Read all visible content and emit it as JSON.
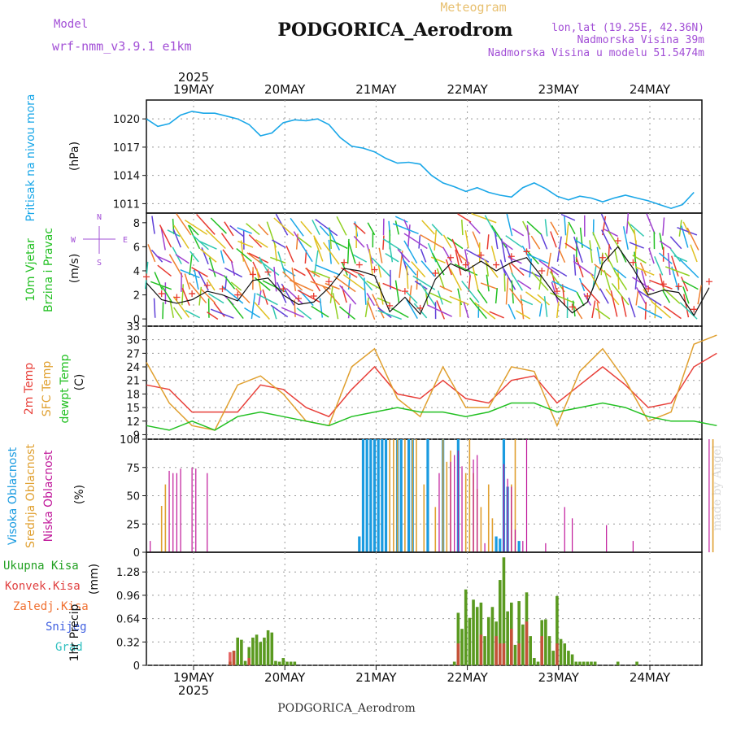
{
  "header": {
    "model_label": "Model",
    "model_name": "wrf-nmm_v3.9.1 e1km",
    "chart_kind": "Meteogram",
    "station": "PODGORICA_Aerodrom",
    "lonlat": "lon,lat (19.25E, 42.36N)",
    "elevation": "Nadmorska Visina 39m",
    "model_elevation": "Nadmorska Visina u modelu 51.5474m",
    "footer_station": "PODGORICA_Aerodrom",
    "credit": "made by Angel",
    "year": "2025"
  },
  "days": [
    "19MAY",
    "20MAY",
    "21MAY",
    "22MAY",
    "23MAY",
    "24MAY"
  ],
  "compass": {
    "n": "N",
    "w": "W",
    "e": "E",
    "s": "S"
  },
  "colors": {
    "pressure": "#1aa7e8",
    "wind_label": "#22c022",
    "wind_compass": "#a24fd6",
    "temp2m": "#e8403a",
    "sfc_temp": "#e0a030",
    "dewpt": "#22c022",
    "high_cloud": "#1a9be0",
    "mid_cloud": "#e0a030",
    "low_cloud": "#c0189a",
    "precip_total": "#5a9a20",
    "precip_conv": "#e04040",
    "snow": "#4060e0",
    "hail": "#30c0c0"
  },
  "chart_data": [
    {
      "type": "line",
      "panel": "pressure",
      "ylabel": "Pritisak na nivou mora",
      "unit": "(hPa)",
      "yticks": [
        1011,
        1014,
        1017,
        1020
      ],
      "ylim": [
        1010,
        1022
      ],
      "series": [
        {
          "x": [
            0,
            3,
            6,
            9,
            12,
            15,
            18,
            21,
            24,
            27,
            30,
            33,
            36,
            39,
            42,
            45,
            48,
            51,
            54,
            57,
            60,
            63,
            66,
            69,
            72,
            75,
            78,
            81,
            84,
            87,
            90,
            93,
            96,
            99,
            102,
            105,
            108,
            111,
            114,
            117,
            120,
            123,
            126,
            129,
            132,
            135,
            138,
            141,
            144
          ],
          "y": [
            1020.0,
            1019.2,
            1019.5,
            1020.4,
            1020.8,
            1020.6,
            1020.6,
            1020.3,
            1020.0,
            1019.4,
            1018.2,
            1018.5,
            1019.6,
            1019.9,
            1019.8,
            1020.0,
            1019.4,
            1018.0,
            1017.1,
            1016.9,
            1016.5,
            1015.8,
            1015.3,
            1015.4,
            1015.2,
            1014.0,
            1013.2,
            1012.8,
            1012.3,
            1012.7,
            1012.2,
            1011.9,
            1011.7,
            1012.7,
            1013.2,
            1012.6,
            1011.8,
            1011.4,
            1011.8,
            1011.6,
            1011.2,
            1011.6,
            1011.9,
            1011.6,
            1011.3,
            1010.9,
            1010.5,
            1010.9,
            1012.2
          ]
        }
      ]
    },
    {
      "type": "line",
      "panel": "wind",
      "ylabel_lines": [
        "10m Vjetar",
        "Brzina i Pravac"
      ],
      "unit": "(m/s)",
      "yticks": [
        0,
        2,
        4,
        6,
        8
      ],
      "ylim": [
        -0.6,
        8.8
      ],
      "series": [
        {
          "x": [
            0,
            4,
            8,
            12,
            16,
            20,
            24,
            28,
            32,
            36,
            40,
            44,
            48,
            52,
            56,
            60,
            64,
            68,
            72,
            76,
            80,
            84,
            88,
            92,
            96,
            100,
            104,
            108,
            112,
            116,
            120,
            124,
            128,
            132,
            136,
            140,
            144,
            148
          ],
          "y": [
            3.0,
            1.6,
            1.3,
            1.6,
            2.3,
            2.0,
            1.5,
            3.2,
            3.4,
            2.0,
            1.2,
            1.4,
            2.6,
            4.2,
            4.0,
            3.6,
            0.6,
            1.8,
            0.4,
            3.3,
            4.6,
            4.0,
            4.8,
            4.0,
            4.7,
            5.1,
            3.5,
            1.8,
            0.5,
            1.4,
            4.6,
            6.0,
            4.2,
            2.0,
            2.4,
            2.2,
            0.3,
            2.6
          ]
        }
      ]
    },
    {
      "type": "line",
      "panel": "temperature",
      "ylabel_lines": [
        "2m Temp",
        "SFC Temp",
        "dewpt Temp"
      ],
      "unit": "(C)",
      "yticks": [
        9,
        12,
        15,
        18,
        21,
        24,
        27,
        30,
        33
      ],
      "ylim": [
        8,
        33
      ],
      "series": [
        {
          "name": "2m Temp",
          "x": [
            0,
            6,
            12,
            18,
            24,
            30,
            36,
            42,
            48,
            54,
            60,
            66,
            72,
            78,
            84,
            90,
            96,
            102,
            108,
            114,
            120,
            126,
            132,
            138,
            144,
            150
          ],
          "y": [
            20,
            19,
            14,
            14,
            14,
            20,
            19,
            15,
            13,
            19,
            24,
            18,
            17,
            21,
            17,
            16,
            21,
            22,
            16,
            20,
            24,
            20,
            15,
            16,
            24,
            27
          ]
        },
        {
          "name": "SFC Temp",
          "x": [
            0,
            6,
            12,
            18,
            24,
            30,
            36,
            42,
            48,
            54,
            60,
            66,
            72,
            78,
            84,
            90,
            96,
            102,
            108,
            114,
            120,
            126,
            132,
            138,
            144,
            150
          ],
          "y": [
            25,
            16,
            11,
            10,
            20,
            22,
            18,
            12,
            11,
            24,
            28,
            17,
            13,
            24,
            15,
            15,
            24,
            23,
            11,
            23,
            28,
            21,
            12,
            14,
            29,
            31
          ]
        },
        {
          "name": "dewpt Temp",
          "x": [
            0,
            6,
            12,
            18,
            24,
            30,
            36,
            42,
            48,
            54,
            60,
            66,
            72,
            78,
            84,
            90,
            96,
            102,
            108,
            114,
            120,
            126,
            132,
            138,
            144,
            150
          ],
          "y": [
            11,
            10,
            12,
            10,
            13,
            14,
            13,
            12,
            11,
            13,
            14,
            15,
            14,
            14,
            13,
            14,
            16,
            16,
            14,
            15,
            16,
            15,
            13,
            12,
            12,
            11
          ]
        }
      ]
    },
    {
      "type": "bar",
      "panel": "clouds",
      "ylabel_lines": [
        "Visoka Oblacnost",
        "Srednja Oblacnost",
        "Niska Oblacnost"
      ],
      "unit": "(%)",
      "yticks": [
        0,
        25,
        50,
        75,
        100
      ],
      "ylim": [
        0,
        100
      ],
      "series": [
        {
          "name": "Visoka Oblacnost",
          "x": [
            56,
            57,
            58,
            59,
            60,
            61,
            62,
            63,
            66,
            67,
            69,
            70,
            74,
            78,
            82,
            92,
            93,
            94,
            95,
            98
          ],
          "values": [
            14,
            100,
            100,
            100,
            100,
            100,
            100,
            100,
            100,
            100,
            100,
            100,
            100,
            100,
            100,
            14,
            12,
            100,
            58,
            10
          ]
        },
        {
          "name": "Srednja Oblacnost",
          "x": [
            4,
            5,
            64,
            65,
            66,
            68,
            70,
            71,
            73,
            76,
            78,
            79,
            80,
            84,
            85,
            86,
            87,
            88,
            90,
            91,
            96,
            97,
            149
          ],
          "values": [
            41,
            60,
            100,
            100,
            100,
            100,
            100,
            100,
            60,
            40,
            100,
            80,
            90,
            70,
            100,
            70,
            56,
            40,
            60,
            30,
            60,
            100,
            100
          ]
        },
        {
          "name": "Niska Oblacnost",
          "x": [
            1,
            6,
            7,
            8,
            9,
            12,
            13,
            16,
            77,
            80,
            81,
            82,
            83,
            86,
            87,
            89,
            94,
            95,
            96,
            97,
            99,
            100,
            105,
            110,
            112,
            121,
            128,
            148
          ],
          "values": [
            10,
            72,
            70,
            70,
            74,
            75,
            74,
            70,
            70,
            80,
            86,
            90,
            76,
            82,
            86,
            8,
            78,
            65,
            58,
            20,
            10,
            100,
            8,
            40,
            30,
            24,
            10,
            100
          ]
        }
      ]
    },
    {
      "type": "bar",
      "panel": "precip",
      "legend": [
        "Ukupna Kisa",
        "Konvek.Kisa",
        "Zaledj.Kisa",
        "Snijeg",
        "Grad"
      ],
      "ylabel": "1hr Precip",
      "unit": "(mm)",
      "yticks": [
        0,
        0.32,
        0.64,
        0.96,
        1.28
      ],
      "ylim": [
        0,
        1.55
      ],
      "series": [
        {
          "name": "Ukupna Kisa",
          "x": [
            22,
            23,
            24,
            25,
            26,
            27,
            28,
            29,
            30,
            31,
            32,
            33,
            34,
            35,
            36,
            37,
            38,
            39,
            81,
            82,
            83,
            84,
            85,
            86,
            87,
            88,
            89,
            90,
            91,
            92,
            93,
            94,
            95,
            96,
            97,
            98,
            99,
            100,
            101,
            102,
            103,
            104,
            105,
            106,
            107,
            108,
            109,
            110,
            111,
            112,
            113,
            114,
            115,
            116,
            117,
            118,
            124,
            129
          ],
          "values": [
            0.05,
            0.2,
            0.38,
            0.35,
            0.06,
            0.25,
            0.38,
            0.42,
            0.32,
            0.38,
            0.48,
            0.45,
            0.06,
            0.05,
            0.1,
            0.05,
            0.05,
            0.05,
            0.05,
            0.72,
            0.5,
            1.04,
            0.65,
            0.9,
            0.8,
            0.86,
            0.4,
            0.66,
            0.8,
            0.6,
            1.17,
            1.48,
            0.74,
            0.86,
            0.28,
            0.88,
            0.56,
            1.0,
            0.4,
            0.1,
            0.05,
            0.62,
            0.63,
            0.4,
            0.2,
            0.95,
            0.36,
            0.3,
            0.2,
            0.15,
            0.05,
            0.05,
            0.05,
            0.05,
            0.05,
            0.05,
            0.05,
            0.05
          ]
        },
        {
          "name": "Konvek.Kisa",
          "x": [
            22,
            23,
            27,
            82,
            88,
            92,
            93,
            94,
            96,
            98,
            100,
            104,
            108
          ],
          "values": [
            0.18,
            0.2,
            0.1,
            0.3,
            0.42,
            0.4,
            0.3,
            0.3,
            0.5,
            0.3,
            0.6,
            0.4,
            0.3
          ]
        }
      ]
    }
  ]
}
